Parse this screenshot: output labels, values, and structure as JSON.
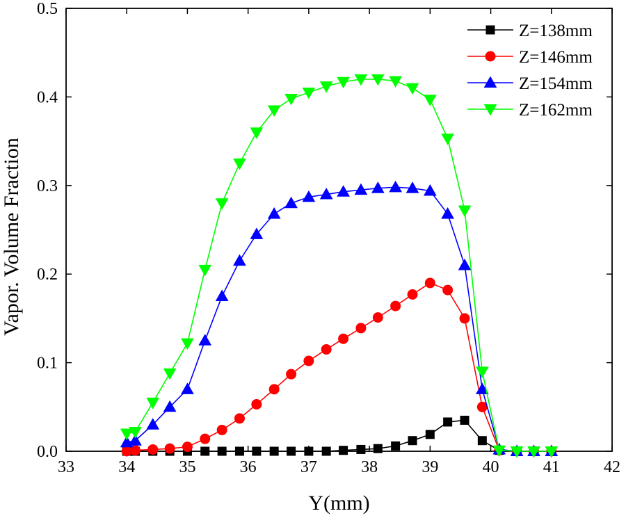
{
  "chart_data": {
    "type": "line",
    "title": "",
    "xlabel": "Y(mm)",
    "ylabel": "Vapor. Volume Fraction",
    "xlim": [
      33,
      42
    ],
    "ylim": [
      0,
      0.5
    ],
    "xticks": [
      33,
      34,
      35,
      36,
      37,
      38,
      39,
      40,
      41,
      42
    ],
    "yticks": [
      0.0,
      0.1,
      0.2,
      0.3,
      0.4,
      0.5
    ],
    "xtick_labels": [
      "33",
      "34",
      "35",
      "36",
      "37",
      "38",
      "39",
      "40",
      "41",
      "42"
    ],
    "ytick_labels": [
      "0.0",
      "0.1",
      "0.2",
      "0.3",
      "0.4",
      "0.5"
    ],
    "grid": false,
    "legend_position": "top-right",
    "series": [
      {
        "name": "Z=138mm",
        "color": "#000000",
        "marker": "square",
        "x": [
          34.0,
          34.14,
          34.43,
          34.71,
          35.0,
          35.29,
          35.57,
          35.86,
          36.14,
          36.43,
          36.71,
          37.0,
          37.29,
          37.57,
          37.86,
          38.14,
          38.43,
          38.71,
          39.0,
          39.29,
          39.57,
          39.86,
          40.14,
          40.43,
          40.71,
          41.0
        ],
        "y": [
          0.0,
          0.0,
          0.0,
          0.0,
          0.0,
          0.0,
          0.0,
          0.0,
          0.0,
          0.0,
          0.0,
          0.0,
          0.0,
          0.001,
          0.002,
          0.003,
          0.006,
          0.012,
          0.019,
          0.033,
          0.035,
          0.012,
          0.001,
          0.0,
          0.0,
          0.0
        ]
      },
      {
        "name": "Z=146mm",
        "color": "#ff0000",
        "marker": "circle",
        "x": [
          34.0,
          34.14,
          34.43,
          34.71,
          35.0,
          35.29,
          35.57,
          35.86,
          36.14,
          36.43,
          36.71,
          37.0,
          37.29,
          37.57,
          37.86,
          38.14,
          38.43,
          38.71,
          39.0,
          39.29,
          39.57,
          39.86,
          40.14,
          40.43,
          40.71,
          41.0
        ],
        "y": [
          0.0,
          0.001,
          0.002,
          0.003,
          0.005,
          0.014,
          0.024,
          0.037,
          0.053,
          0.07,
          0.087,
          0.102,
          0.115,
          0.127,
          0.139,
          0.151,
          0.164,
          0.177,
          0.19,
          0.182,
          0.15,
          0.05,
          0.001,
          0.0,
          0.0,
          0.0
        ]
      },
      {
        "name": "Z=154mm",
        "color": "#0000ff",
        "marker": "triangle-up",
        "x": [
          34.0,
          34.14,
          34.43,
          34.71,
          35.0,
          35.29,
          35.57,
          35.86,
          36.14,
          36.43,
          36.71,
          37.0,
          37.29,
          37.57,
          37.86,
          38.14,
          38.43,
          38.71,
          39.0,
          39.29,
          39.57,
          39.86,
          40.14,
          40.43,
          40.71,
          41.0
        ],
        "y": [
          0.01,
          0.012,
          0.03,
          0.05,
          0.07,
          0.125,
          0.175,
          0.215,
          0.245,
          0.268,
          0.28,
          0.287,
          0.29,
          0.293,
          0.295,
          0.297,
          0.298,
          0.297,
          0.294,
          0.268,
          0.21,
          0.07,
          0.002,
          0.0,
          0.0,
          0.0
        ]
      },
      {
        "name": "Z=162mm",
        "color": "#00ff00",
        "marker": "triangle-down",
        "x": [
          34.0,
          34.14,
          34.43,
          34.71,
          35.0,
          35.29,
          35.57,
          35.86,
          36.14,
          36.43,
          36.71,
          37.0,
          37.29,
          37.57,
          37.86,
          38.14,
          38.43,
          38.71,
          39.0,
          39.29,
          39.57,
          39.86,
          40.14,
          40.43,
          40.71,
          41.0
        ],
        "y": [
          0.02,
          0.022,
          0.055,
          0.088,
          0.122,
          0.205,
          0.28,
          0.325,
          0.36,
          0.385,
          0.398,
          0.405,
          0.412,
          0.417,
          0.42,
          0.42,
          0.418,
          0.41,
          0.397,
          0.353,
          0.272,
          0.09,
          0.001,
          0.0,
          0.0,
          0.0
        ]
      }
    ]
  }
}
